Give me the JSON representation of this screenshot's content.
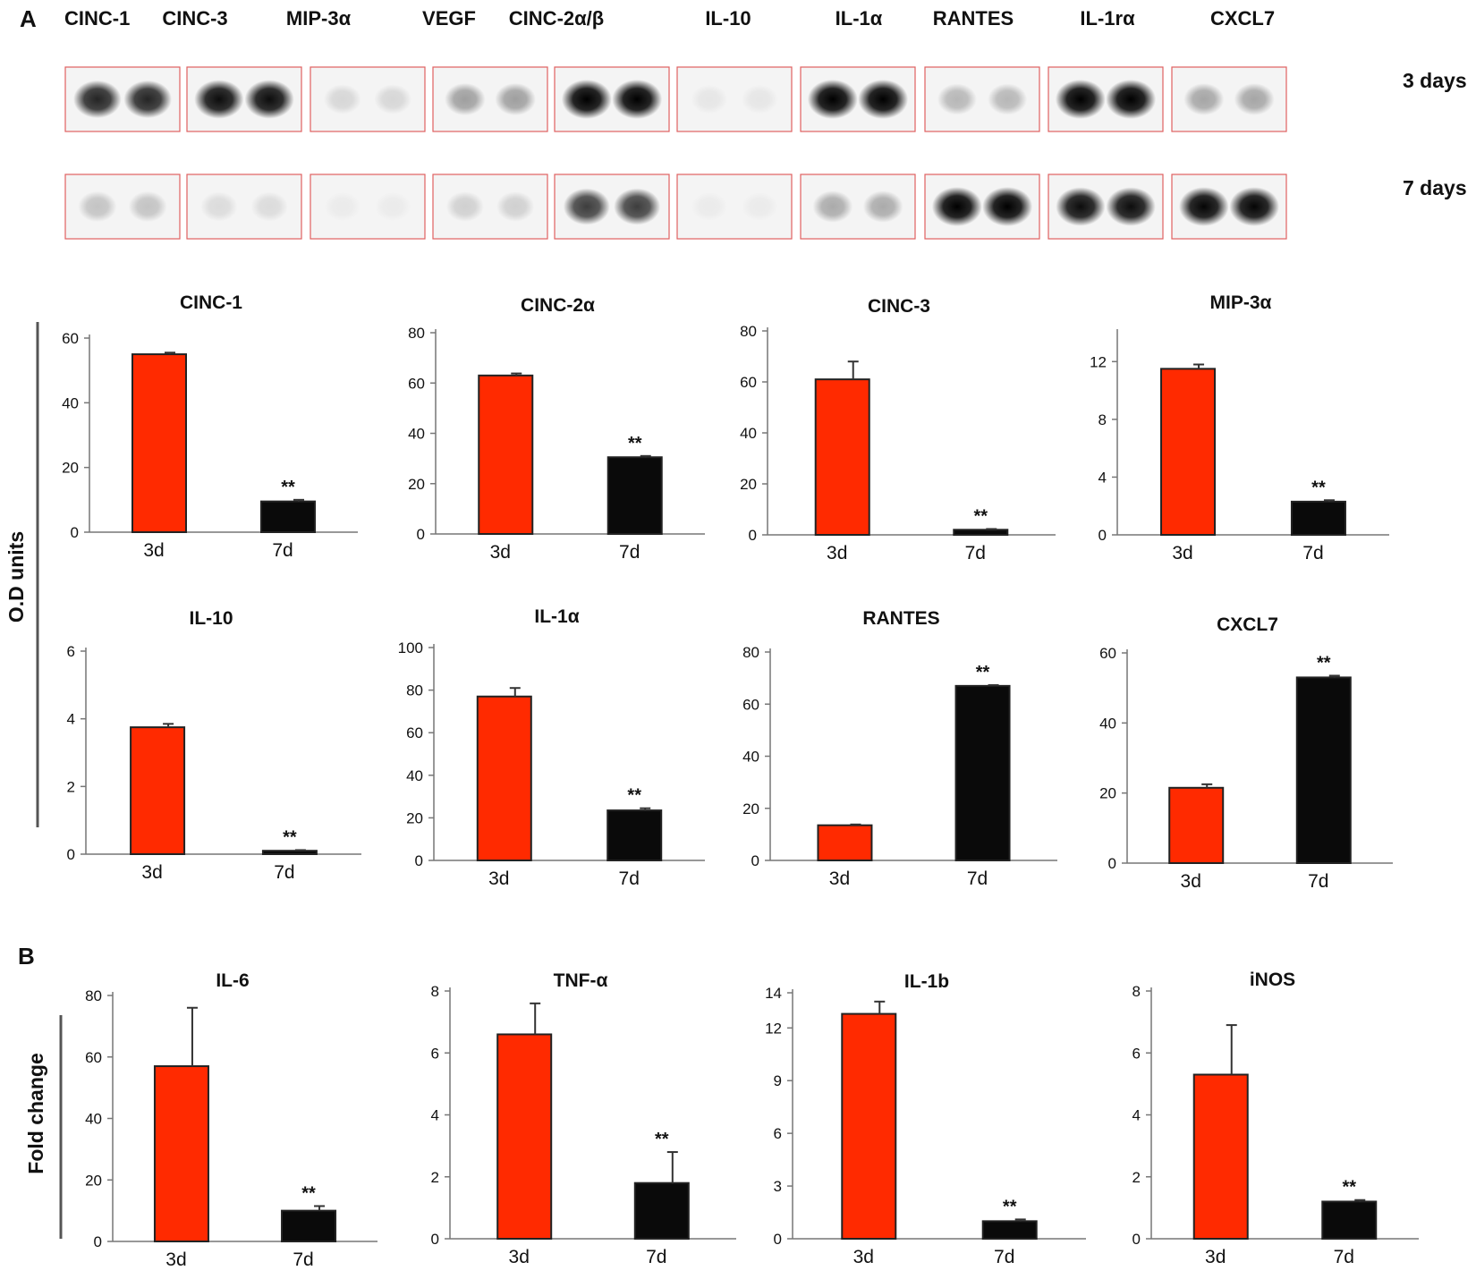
{
  "colors": {
    "red_bar": "#ff2a00",
    "black_bar": "#0a0a0a",
    "blot_border": "#e06060"
  },
  "panel_a": {
    "letter": "A",
    "blot_labels": [
      "CINC-1",
      "CINC-3",
      "MIP-3α",
      "VEGF",
      "CINC-2α/β",
      "IL-10",
      "IL-1α",
      "RANTES",
      "IL-1rα",
      "CXCL7"
    ],
    "rows": [
      "3 days",
      "7 days"
    ],
    "blot_intensity": {
      "3_days": [
        0.85,
        0.95,
        0.12,
        0.35,
        1.0,
        0.06,
        1.0,
        0.25,
        1.0,
        0.32
      ],
      "7_days": [
        0.2,
        0.1,
        0.04,
        0.15,
        0.75,
        0.03,
        0.3,
        1.0,
        0.95,
        0.98
      ]
    },
    "ylabel": "O.D units"
  },
  "panel_b": {
    "letter": "B",
    "ylabel": "Fold change"
  },
  "chart_data": [
    {
      "type": "bar",
      "panel": "A",
      "title": "CINC-1",
      "categories": [
        "3d",
        "7d"
      ],
      "values": [
        55,
        9.5
      ],
      "errors": [
        0.5,
        0.5
      ],
      "significance": [
        "",
        "**"
      ],
      "ylim": [
        0,
        60
      ],
      "yticks": [
        0,
        20,
        40,
        60
      ]
    },
    {
      "type": "bar",
      "panel": "A",
      "title": "CINC-2α",
      "categories": [
        "3d",
        "7d"
      ],
      "values": [
        63,
        30.5
      ],
      "errors": [
        0.8,
        0.5
      ],
      "significance": [
        "",
        "**"
      ],
      "ylim": [
        0,
        80
      ],
      "yticks": [
        0,
        20,
        40,
        60,
        80
      ]
    },
    {
      "type": "bar",
      "panel": "A",
      "title": "CINC-3",
      "categories": [
        "3d",
        "7d"
      ],
      "values": [
        61,
        2
      ],
      "errors": [
        7,
        0.3
      ],
      "significance": [
        "",
        "**"
      ],
      "ylim": [
        0,
        80
      ],
      "yticks": [
        0,
        20,
        40,
        60,
        80
      ]
    },
    {
      "type": "bar",
      "panel": "A",
      "title": "MIP-3α",
      "categories": [
        "3d",
        "7d"
      ],
      "values": [
        11.5,
        2.3
      ],
      "errors": [
        0.3,
        0.1
      ],
      "significance": [
        "",
        "**"
      ],
      "ylim": [
        0,
        14
      ],
      "yticks": [
        0,
        4,
        8,
        12
      ]
    },
    {
      "type": "bar",
      "panel": "A",
      "title": "IL-10",
      "categories": [
        "3d",
        "7d"
      ],
      "values": [
        3.75,
        0.1
      ],
      "errors": [
        0.1,
        0.02
      ],
      "significance": [
        "",
        "**"
      ],
      "ylim": [
        0,
        6
      ],
      "yticks": [
        0,
        2,
        4,
        6
      ]
    },
    {
      "type": "bar",
      "panel": "A",
      "title": "IL-1α",
      "categories": [
        "3d",
        "7d"
      ],
      "values": [
        77,
        23.5
      ],
      "errors": [
        4,
        1
      ],
      "significance": [
        "",
        "**"
      ],
      "ylim": [
        0,
        100
      ],
      "yticks": [
        0,
        20,
        40,
        60,
        80,
        100
      ]
    },
    {
      "type": "bar",
      "panel": "A",
      "title": "RANTES",
      "categories": [
        "3d",
        "7d"
      ],
      "values": [
        13.5,
        67
      ],
      "errors": [
        0.3,
        0.3
      ],
      "significance": [
        "",
        "**"
      ],
      "ylim": [
        0,
        80
      ],
      "yticks": [
        0,
        20,
        40,
        60,
        80
      ]
    },
    {
      "type": "bar",
      "panel": "A",
      "title": "CXCL7",
      "categories": [
        "3d",
        "7d"
      ],
      "values": [
        21.5,
        53
      ],
      "errors": [
        1,
        0.5
      ],
      "significance": [
        "",
        "**"
      ],
      "ylim": [
        0,
        60
      ],
      "yticks": [
        0,
        20,
        40,
        60
      ]
    },
    {
      "type": "bar",
      "panel": "B",
      "title": "IL-6",
      "categories": [
        "3d",
        "7d"
      ],
      "values": [
        57,
        10
      ],
      "errors": [
        19,
        1.5
      ],
      "significance": [
        "",
        "**"
      ],
      "ylim": [
        0,
        80
      ],
      "yticks": [
        0,
        20,
        40,
        60,
        80
      ]
    },
    {
      "type": "bar",
      "panel": "B",
      "title": "TNF-α",
      "categories": [
        "3d",
        "7d"
      ],
      "values": [
        6.6,
        1.8
      ],
      "errors": [
        1.0,
        1.0
      ],
      "significance": [
        "",
        "**"
      ],
      "ylim": [
        0,
        8
      ],
      "yticks": [
        0,
        2,
        4,
        6,
        8
      ]
    },
    {
      "type": "bar",
      "panel": "B",
      "title": "IL-1b",
      "categories": [
        "3d",
        "7d"
      ],
      "values": [
        12.8,
        1
      ],
      "errors": [
        0.7,
        0.1
      ],
      "significance": [
        "",
        "**"
      ],
      "ylim": [
        0,
        14
      ],
      "yticks": [
        0,
        3,
        6,
        9,
        12,
        14
      ]
    },
    {
      "type": "bar",
      "panel": "B",
      "title": "iNOS",
      "categories": [
        "3d",
        "7d"
      ],
      "values": [
        5.3,
        1.2
      ],
      "errors": [
        1.6,
        0.05
      ],
      "significance": [
        "",
        "**"
      ],
      "ylim": [
        0,
        8
      ],
      "yticks": [
        0,
        2,
        4,
        6,
        8
      ]
    }
  ]
}
